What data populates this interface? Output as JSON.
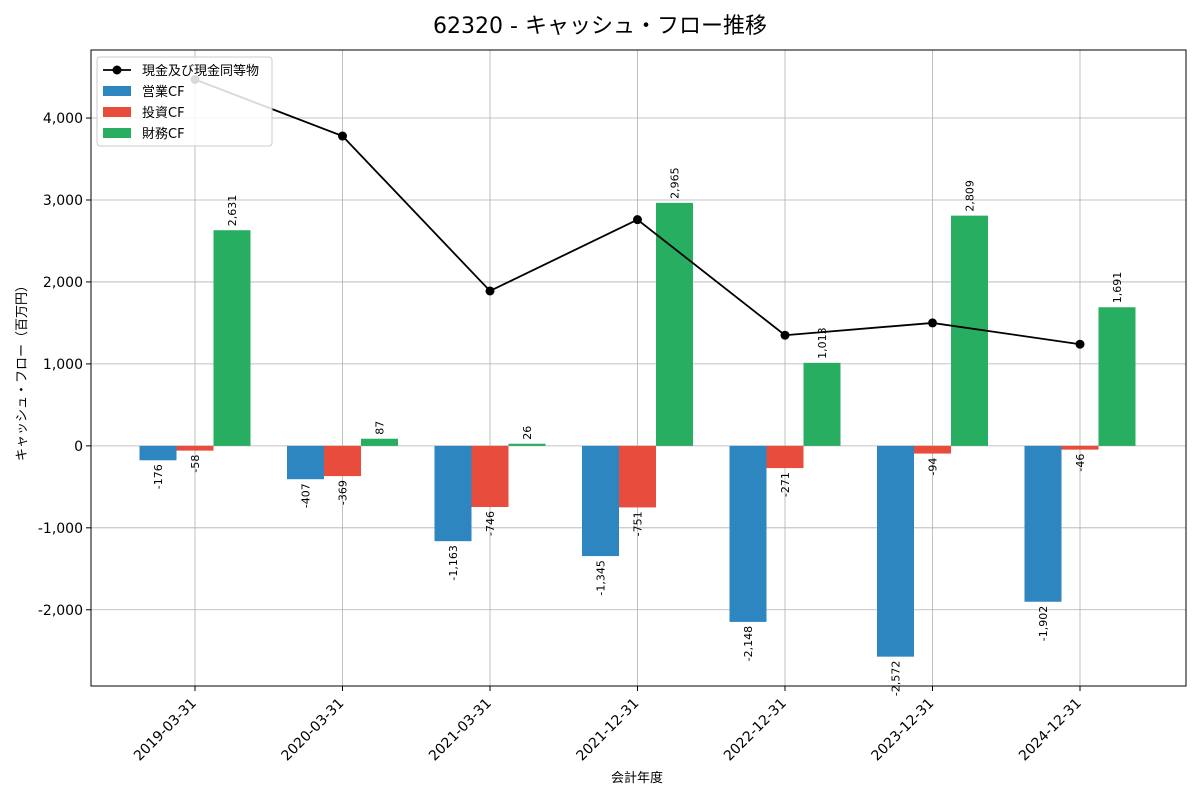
{
  "chart_data": {
    "type": "bar",
    "title": "62320 - キャッシュ・フロー推移",
    "xlabel": "会計年度",
    "ylabel": "キャッシュ・フロー（百万円）",
    "categories": [
      "2019-03-31",
      "2020-03-31",
      "2021-03-31",
      "2021-12-31",
      "2022-12-31",
      "2023-12-31",
      "2024-12-31"
    ],
    "series": [
      {
        "name": "営業CF",
        "type": "bar",
        "color": "#2e86c1",
        "values": [
          -176,
          -407,
          -1163,
          -1345,
          -2148,
          -2572,
          -1902
        ],
        "labels": [
          "-176",
          "-407",
          "-1,163",
          "-1,345",
          "-2,148",
          "-2,572",
          "-1,902"
        ]
      },
      {
        "name": "投資CF",
        "type": "bar",
        "color": "#e74c3c",
        "values": [
          -58,
          -369,
          -746,
          -751,
          -271,
          -94,
          -46
        ],
        "labels": [
          "-58",
          "-369",
          "-746",
          "-751",
          "-271",
          "-94",
          "-46"
        ]
      },
      {
        "name": "財務CF",
        "type": "bar",
        "color": "#27ae60",
        "values": [
          2631,
          87,
          26,
          2965,
          1013,
          2809,
          1691
        ],
        "labels": [
          "2,631",
          "87",
          "26",
          "2,965",
          "1,013",
          "2,809",
          "1,691"
        ]
      },
      {
        "name": "現金及び現金同等物",
        "type": "line",
        "color": "#000000",
        "values": [
          4470,
          3780,
          1890,
          2760,
          1350,
          1500,
          1240
        ]
      }
    ],
    "ylim": [
      -2930,
      4830
    ],
    "yticks": [
      -2000,
      -1000,
      0,
      1000,
      2000,
      3000,
      4000
    ],
    "ytick_labels": [
      "-2,000",
      "-1,000",
      "0",
      "1,000",
      "2,000",
      "3,000",
      "4,000"
    ],
    "grid": true,
    "legend_position": "top-left"
  }
}
